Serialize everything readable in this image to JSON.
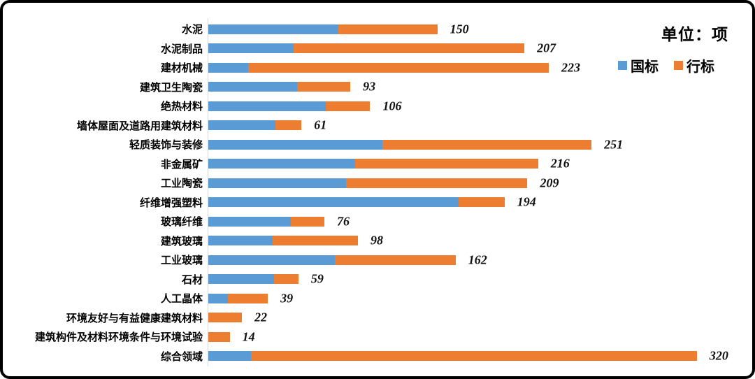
{
  "unit_label": "单位：项",
  "colors": {
    "guobiao_blue": "#5B9BD5",
    "hangbiao_orange": "#ED7D31",
    "axis_gray": "#D9D9D9"
  },
  "chart_data": {
    "type": "bar",
    "orientation": "horizontal",
    "stacked": true,
    "grid": false,
    "legend_position": "top-right",
    "xlim": [
      0,
      320
    ],
    "title": "",
    "xlabel": "",
    "ylabel": "",
    "unit_note": "单位：项",
    "categories": [
      "水泥",
      "水泥制品",
      "建材机械",
      "建筑卫生陶瓷",
      "绝热材料",
      "墙体屋面及道路用建筑材料",
      "轻质装饰与装修",
      "非金属矿",
      "工业陶瓷",
      "纤维增强塑料",
      "玻璃纤维",
      "建筑玻璃",
      "工业玻璃",
      "石材",
      "人工晶体",
      "环境友好与有益健康建筑材料",
      "建筑构件及材料环境条件与环境试验",
      "综合领域"
    ],
    "series": [
      {
        "name": "国标",
        "color": "#5B9BD5",
        "values": [
          85,
          56,
          26,
          58,
          77,
          44,
          114,
          96,
          90,
          164,
          54,
          42,
          83,
          43,
          13,
          0,
          0,
          28
        ]
      },
      {
        "name": "行标",
        "color": "#ED7D31",
        "values": [
          65,
          151,
          197,
          35,
          29,
          17,
          137,
          120,
          119,
          30,
          22,
          56,
          79,
          16,
          26,
          22,
          14,
          292
        ]
      }
    ],
    "totals": [
      150,
      207,
      223,
      93,
      106,
      61,
      251,
      216,
      209,
      194,
      76,
      98,
      162,
      59,
      39,
      22,
      14,
      320
    ]
  }
}
